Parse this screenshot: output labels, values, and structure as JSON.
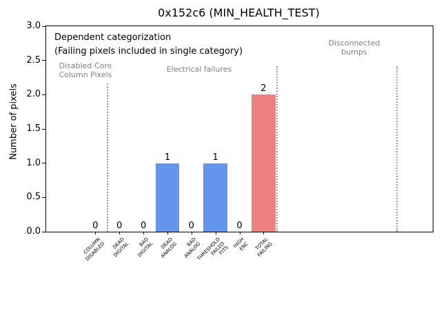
{
  "chart_data": {
    "type": "bar",
    "title": "0x152c6 (MIN_HEALTH_TEST)",
    "ylabel": "Number of pixels",
    "ylim": [
      0,
      3
    ],
    "yticks": [
      0.0,
      0.5,
      1.0,
      1.5,
      2.0,
      2.5,
      3.0
    ],
    "categories": [
      "COLUMN\nDISABLED",
      "DEAD\nDIGITAL",
      "BAD\nDIGITAL",
      "DEAD\nANALOG",
      "BAD\nANALOG",
      "THRESHOLD\nFAILED\nFITS",
      "HIGH\nENC",
      "TOTAL\nFAILING"
    ],
    "values": [
      0,
      0,
      0,
      1,
      0,
      1,
      0,
      2
    ],
    "bar_value_labels": [
      "0",
      "0",
      "0",
      "1",
      "0",
      "1",
      "0",
      "2"
    ],
    "bar_colors": [
      "#6495ED",
      "#6495ED",
      "#6495ED",
      "#6495ED",
      "#6495ED",
      "#6495ED",
      "#6495ED",
      "#F08080"
    ],
    "annotations": {
      "note_line1": "Dependent categorization",
      "note_line2": "(Failing pixels included in single category)",
      "regions": [
        {
          "label": "Disabled Core\nColumn Pixels"
        },
        {
          "label": "Electrical failures"
        },
        {
          "label": "Disconnected\nbumps"
        }
      ]
    },
    "separators": [
      {
        "x": 0.5,
        "ymax": 2.16
      },
      {
        "x": 7.55,
        "ymax": 2.42
      },
      {
        "x": 12.55,
        "ymax": 2.42
      }
    ],
    "colors": {
      "bar_blue": "#6495ED",
      "bar_red": "#F08080",
      "separator_gray": "#999999",
      "region_text_gray": "#808080"
    },
    "legend": false,
    "grid": false
  }
}
